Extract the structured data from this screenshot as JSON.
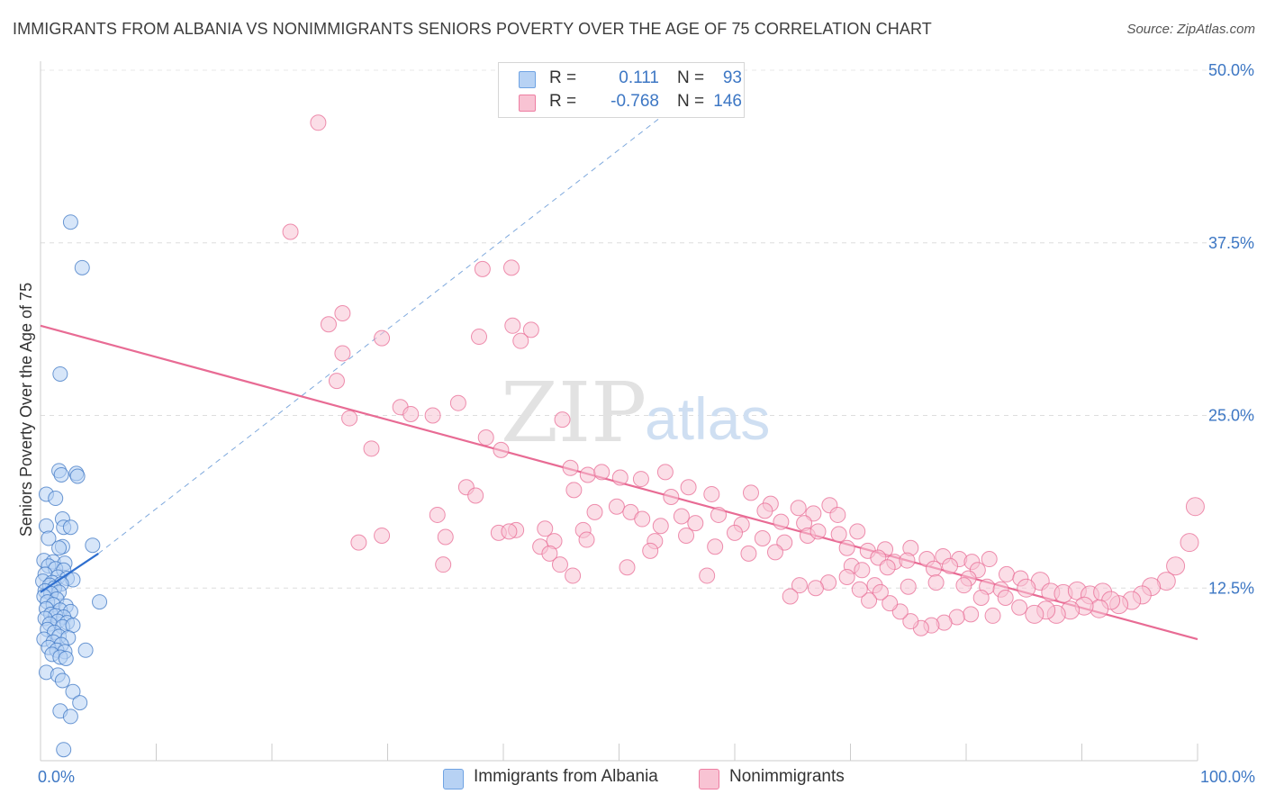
{
  "title": "IMMIGRANTS FROM ALBANIA VS NONIMMIGRANTS SENIORS POVERTY OVER THE AGE OF 75 CORRELATION CHART",
  "source": "Source: ZipAtlas.com",
  "watermark": {
    "zip": "ZIP",
    "atlas": "atlas"
  },
  "legend": {
    "r_label": "R =",
    "n_label": "N =",
    "rows": [
      {
        "name": "Immigrants from Albania",
        "r": "0.111",
        "n": "93",
        "color": "#6fa3e3",
        "fill": "#b7d2f4"
      },
      {
        "name": "Nonimmigrants",
        "r": "-0.768",
        "n": "146",
        "color": "#ee7ea2",
        "fill": "#f8c3d3"
      }
    ]
  },
  "chart_data": {
    "type": "scatter",
    "title": "IMMIGRANTS FROM ALBANIA VS NONIMMIGRANTS SENIORS POVERTY OVER THE AGE OF 75 CORRELATION CHART",
    "xlabel": "",
    "ylabel": "Seniors Poverty Over the Age of 75",
    "xlim": [
      0,
      100
    ],
    "ylim": [
      0,
      50
    ],
    "x_tick_labels": [
      "0.0%",
      "100.0%"
    ],
    "y_ticks": [
      12.5,
      25.0,
      37.5,
      50.0
    ],
    "y_tick_labels": [
      "12.5%",
      "25.0%",
      "37.5%",
      "50.0%"
    ],
    "grid": true,
    "legend_position": "top-center",
    "series": [
      {
        "name": "Immigrants from Albania",
        "color": "#3d77c4",
        "fill": "#b7d2f4",
        "trend": {
          "x": [
            0,
            5
          ],
          "y": [
            12.2,
            15.0
          ],
          "dashed_extension_to": [
            55,
            47.5
          ]
        },
        "points": [
          [
            2.6,
            39.0
          ],
          [
            3.6,
            35.7
          ],
          [
            1.7,
            28.0
          ],
          [
            1.6,
            21.0
          ],
          [
            1.8,
            20.7
          ],
          [
            3.1,
            20.8
          ],
          [
            3.2,
            20.6
          ],
          [
            0.5,
            19.3
          ],
          [
            1.3,
            19.0
          ],
          [
            1.9,
            17.5
          ],
          [
            2.0,
            16.9
          ],
          [
            0.5,
            17.0
          ],
          [
            2.6,
            16.9
          ],
          [
            0.7,
            16.1
          ],
          [
            1.9,
            15.5
          ],
          [
            1.6,
            15.4
          ],
          [
            4.5,
            15.6
          ],
          [
            0.3,
            14.5
          ],
          [
            1.1,
            14.4
          ],
          [
            2.1,
            14.3
          ],
          [
            0.7,
            14.1
          ],
          [
            1.3,
            13.9
          ],
          [
            2.0,
            13.8
          ],
          [
            0.4,
            13.5
          ],
          [
            1.5,
            13.3
          ],
          [
            2.3,
            13.2
          ],
          [
            2.8,
            13.1
          ],
          [
            0.2,
            13.0
          ],
          [
            1.0,
            12.9
          ],
          [
            1.8,
            12.8
          ],
          [
            0.8,
            12.7
          ],
          [
            1.2,
            12.5
          ],
          [
            0.4,
            12.3
          ],
          [
            1.6,
            12.2
          ],
          [
            0.9,
            12.1
          ],
          [
            0.3,
            11.9
          ],
          [
            1.4,
            11.7
          ],
          [
            0.6,
            11.5
          ],
          [
            1.1,
            11.3
          ],
          [
            2.2,
            11.2
          ],
          [
            0.5,
            11.0
          ],
          [
            1.7,
            10.9
          ],
          [
            2.6,
            10.8
          ],
          [
            0.9,
            10.6
          ],
          [
            1.3,
            10.5
          ],
          [
            2.0,
            10.4
          ],
          [
            0.4,
            10.3
          ],
          [
            1.5,
            10.1
          ],
          [
            2.3,
            10.0
          ],
          [
            0.8,
            9.9
          ],
          [
            1.9,
            9.7
          ],
          [
            2.8,
            9.8
          ],
          [
            0.6,
            9.5
          ],
          [
            1.2,
            9.3
          ],
          [
            1.6,
            9.0
          ],
          [
            2.4,
            8.9
          ],
          [
            0.3,
            8.8
          ],
          [
            1.1,
            8.6
          ],
          [
            1.8,
            8.4
          ],
          [
            0.7,
            8.2
          ],
          [
            1.4,
            8.0
          ],
          [
            2.1,
            7.9
          ],
          [
            3.9,
            8.0
          ],
          [
            1.0,
            7.7
          ],
          [
            1.7,
            7.5
          ],
          [
            2.2,
            7.4
          ],
          [
            5.1,
            11.5
          ],
          [
            0.5,
            6.4
          ],
          [
            1.5,
            6.2
          ],
          [
            1.9,
            5.8
          ],
          [
            2.8,
            5.0
          ],
          [
            3.4,
            4.2
          ],
          [
            1.7,
            3.6
          ],
          [
            2.6,
            3.2
          ],
          [
            2.0,
            0.8
          ]
        ]
      },
      {
        "name": "Nonimmigrants",
        "color": "#e86b94",
        "fill": "#f8c3d3",
        "trend": {
          "x": [
            0,
            100
          ],
          "y": [
            31.5,
            8.8
          ]
        },
        "points": [
          [
            24.0,
            46.2
          ],
          [
            21.6,
            38.3
          ],
          [
            38.2,
            35.6
          ],
          [
            40.7,
            35.7
          ],
          [
            26.1,
            32.4
          ],
          [
            24.9,
            31.6
          ],
          [
            40.8,
            31.5
          ],
          [
            42.4,
            31.2
          ],
          [
            29.5,
            30.6
          ],
          [
            37.9,
            30.7
          ],
          [
            41.5,
            30.4
          ],
          [
            26.1,
            29.5
          ],
          [
            25.6,
            27.5
          ],
          [
            31.1,
            25.6
          ],
          [
            36.1,
            25.9
          ],
          [
            26.7,
            24.8
          ],
          [
            32.0,
            25.1
          ],
          [
            33.9,
            25.0
          ],
          [
            45.1,
            24.7
          ],
          [
            38.5,
            23.4
          ],
          [
            28.6,
            22.6
          ],
          [
            39.8,
            22.5
          ],
          [
            45.8,
            21.2
          ],
          [
            47.3,
            20.7
          ],
          [
            48.5,
            20.9
          ],
          [
            50.1,
            20.5
          ],
          [
            51.9,
            20.4
          ],
          [
            54.0,
            20.9
          ],
          [
            36.8,
            19.8
          ],
          [
            37.6,
            19.2
          ],
          [
            46.1,
            19.6
          ],
          [
            56.0,
            19.8
          ],
          [
            54.5,
            19.1
          ],
          [
            58.0,
            19.3
          ],
          [
            61.4,
            19.4
          ],
          [
            63.1,
            18.6
          ],
          [
            65.5,
            18.3
          ],
          [
            68.2,
            18.5
          ],
          [
            47.9,
            18.0
          ],
          [
            49.8,
            18.4
          ],
          [
            51.0,
            18.0
          ],
          [
            55.4,
            17.7
          ],
          [
            58.6,
            17.8
          ],
          [
            62.6,
            18.1
          ],
          [
            66.8,
            17.9
          ],
          [
            68.9,
            17.8
          ],
          [
            34.3,
            17.8
          ],
          [
            52.0,
            17.5
          ],
          [
            53.6,
            17.0
          ],
          [
            56.6,
            17.2
          ],
          [
            60.6,
            17.1
          ],
          [
            64.0,
            17.3
          ],
          [
            66.0,
            17.2
          ],
          [
            41.1,
            16.7
          ],
          [
            39.6,
            16.5
          ],
          [
            40.5,
            16.6
          ],
          [
            43.6,
            16.8
          ],
          [
            46.9,
            16.7
          ],
          [
            55.8,
            16.3
          ],
          [
            60.0,
            16.5
          ],
          [
            62.4,
            16.1
          ],
          [
            66.3,
            16.3
          ],
          [
            67.2,
            16.6
          ],
          [
            69.0,
            16.4
          ],
          [
            70.6,
            16.6
          ],
          [
            27.5,
            15.8
          ],
          [
            29.5,
            16.3
          ],
          [
            35.0,
            16.2
          ],
          [
            44.4,
            15.9
          ],
          [
            47.2,
            16.0
          ],
          [
            53.1,
            15.9
          ],
          [
            58.3,
            15.5
          ],
          [
            64.3,
            15.8
          ],
          [
            69.7,
            15.4
          ],
          [
            71.5,
            15.2
          ],
          [
            73.0,
            15.3
          ],
          [
            75.2,
            15.4
          ],
          [
            43.2,
            15.5
          ],
          [
            44.0,
            15.0
          ],
          [
            52.7,
            15.2
          ],
          [
            61.2,
            15.0
          ],
          [
            63.5,
            15.1
          ],
          [
            72.4,
            14.7
          ],
          [
            73.8,
            14.4
          ],
          [
            74.9,
            14.5
          ],
          [
            76.6,
            14.6
          ],
          [
            78.0,
            14.8
          ],
          [
            79.4,
            14.6
          ],
          [
            80.5,
            14.4
          ],
          [
            82.0,
            14.6
          ],
          [
            44.9,
            14.2
          ],
          [
            50.7,
            14.0
          ],
          [
            34.8,
            14.2
          ],
          [
            70.1,
            14.1
          ],
          [
            71.0,
            13.8
          ],
          [
            73.2,
            14.0
          ],
          [
            77.2,
            13.9
          ],
          [
            78.6,
            14.1
          ],
          [
            81.0,
            13.8
          ],
          [
            46.0,
            13.4
          ],
          [
            57.6,
            13.4
          ],
          [
            80.2,
            13.2
          ],
          [
            83.5,
            13.5
          ],
          [
            84.7,
            13.2
          ],
          [
            86.4,
            13.0
          ],
          [
            72.1,
            12.7
          ],
          [
            75.0,
            12.6
          ],
          [
            77.4,
            12.9
          ],
          [
            79.8,
            12.7
          ],
          [
            81.8,
            12.6
          ],
          [
            83.0,
            12.4
          ],
          [
            85.2,
            12.5
          ],
          [
            87.3,
            12.2
          ],
          [
            88.4,
            12.1
          ],
          [
            89.6,
            12.3
          ],
          [
            90.7,
            12.0
          ],
          [
            91.8,
            12.2
          ],
          [
            99.8,
            18.4
          ],
          [
            99.3,
            15.8
          ],
          [
            98.1,
            14.1
          ],
          [
            97.3,
            13.0
          ],
          [
            96.0,
            12.6
          ],
          [
            95.2,
            12.0
          ],
          [
            94.3,
            11.6
          ],
          [
            93.2,
            11.3
          ],
          [
            92.5,
            11.6
          ],
          [
            91.5,
            11.0
          ],
          [
            90.2,
            11.2
          ],
          [
            89.0,
            10.9
          ],
          [
            87.8,
            10.6
          ],
          [
            86.9,
            10.9
          ],
          [
            85.9,
            10.6
          ],
          [
            84.6,
            11.1
          ],
          [
            83.4,
            11.8
          ],
          [
            82.3,
            10.5
          ],
          [
            81.3,
            11.8
          ],
          [
            80.4,
            10.6
          ],
          [
            79.2,
            10.4
          ],
          [
            78.1,
            10.0
          ],
          [
            77.0,
            9.8
          ],
          [
            76.1,
            9.6
          ],
          [
            75.2,
            10.1
          ],
          [
            74.3,
            10.8
          ],
          [
            73.4,
            11.4
          ],
          [
            72.6,
            12.2
          ],
          [
            71.6,
            11.6
          ],
          [
            70.8,
            12.4
          ],
          [
            69.7,
            13.3
          ],
          [
            68.1,
            12.9
          ],
          [
            67.0,
            12.5
          ],
          [
            65.6,
            12.7
          ],
          [
            64.8,
            11.9
          ]
        ]
      }
    ]
  }
}
